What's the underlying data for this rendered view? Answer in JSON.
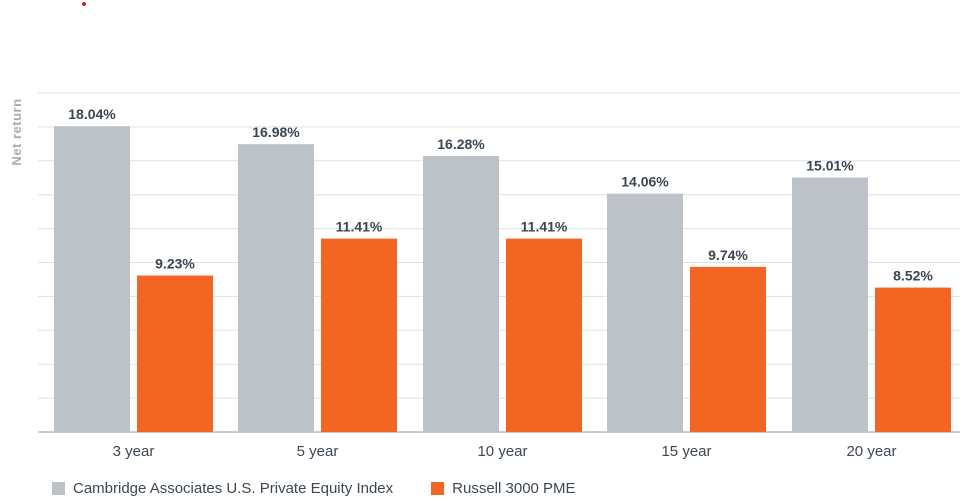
{
  "chart_data": {
    "type": "bar",
    "title": "",
    "xlabel": "",
    "ylabel": "Net return",
    "categories": [
      "3 year",
      "5 year",
      "10 year",
      "15 year",
      "20 year"
    ],
    "series": [
      {
        "name": "Cambridge Associates U.S. Private Equity Index",
        "color": "#bcc2c7",
        "values": [
          18.04,
          16.98,
          16.28,
          14.06,
          15.01
        ],
        "labels": [
          "18.04%",
          "16.98%",
          "16.28%",
          "14.06%",
          "15.01%"
        ]
      },
      {
        "name": "Russell 3000 PME",
        "color": "#f26522",
        "values": [
          9.23,
          11.41,
          11.41,
          9.74,
          8.52
        ],
        "labels": [
          "9.23%",
          "11.41%",
          "11.41%",
          "9.74%",
          "8.52%"
        ]
      }
    ],
    "ylim": [
      0,
      20
    ],
    "grid": true,
    "legend_position": "bottom-left"
  }
}
